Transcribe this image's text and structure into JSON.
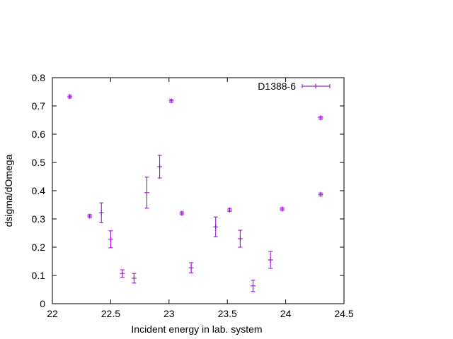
{
  "chart_data": {
    "type": "scatter",
    "title": "",
    "xlabel": "Incident energy in lab. system",
    "ylabel": "dsigma/dOmega",
    "xlim": [
      22,
      24.5
    ],
    "ylim": [
      0,
      0.8
    ],
    "xticks": [
      22,
      22.5,
      23,
      23.5,
      24,
      24.5
    ],
    "xtick_labels": [
      "22",
      "22.5",
      "23",
      "23.5",
      "24",
      "24.5"
    ],
    "yticks": [
      0,
      0.1,
      0.2,
      0.3,
      0.4,
      0.5,
      0.6,
      0.7,
      0.8
    ],
    "ytick_labels": [
      "0",
      "0.1",
      "0.2",
      "0.3",
      "0.4",
      "0.5",
      "0.6",
      "0.7",
      "0.8"
    ],
    "grid": false,
    "legend_position": "top-right",
    "series": [
      {
        "name": "D1388-6",
        "color": "#9400d3",
        "marker": "plus",
        "error_bars": "vertical",
        "points": [
          {
            "x": 22.15,
            "y": 0.733,
            "err": 0.005
          },
          {
            "x": 22.32,
            "y": 0.31,
            "err": 0.005
          },
          {
            "x": 22.42,
            "y": 0.322,
            "err": 0.035
          },
          {
            "x": 22.5,
            "y": 0.228,
            "err": 0.03
          },
          {
            "x": 22.6,
            "y": 0.107,
            "err": 0.013
          },
          {
            "x": 22.7,
            "y": 0.09,
            "err": 0.017
          },
          {
            "x": 22.81,
            "y": 0.393,
            "err": 0.055
          },
          {
            "x": 22.92,
            "y": 0.485,
            "err": 0.04
          },
          {
            "x": 23.02,
            "y": 0.718,
            "err": 0.005
          },
          {
            "x": 23.11,
            "y": 0.32,
            "err": 0.005
          },
          {
            "x": 23.19,
            "y": 0.127,
            "err": 0.018
          },
          {
            "x": 23.4,
            "y": 0.272,
            "err": 0.035
          },
          {
            "x": 23.52,
            "y": 0.332,
            "err": 0.005
          },
          {
            "x": 23.61,
            "y": 0.23,
            "err": 0.03
          },
          {
            "x": 23.72,
            "y": 0.063,
            "err": 0.02
          },
          {
            "x": 23.87,
            "y": 0.155,
            "err": 0.03
          },
          {
            "x": 23.97,
            "y": 0.335,
            "err": 0.005
          },
          {
            "x": 24.3,
            "y": 0.658,
            "err": 0.005
          },
          {
            "x": 24.3,
            "y": 0.387,
            "err": 0.005
          }
        ]
      }
    ]
  }
}
